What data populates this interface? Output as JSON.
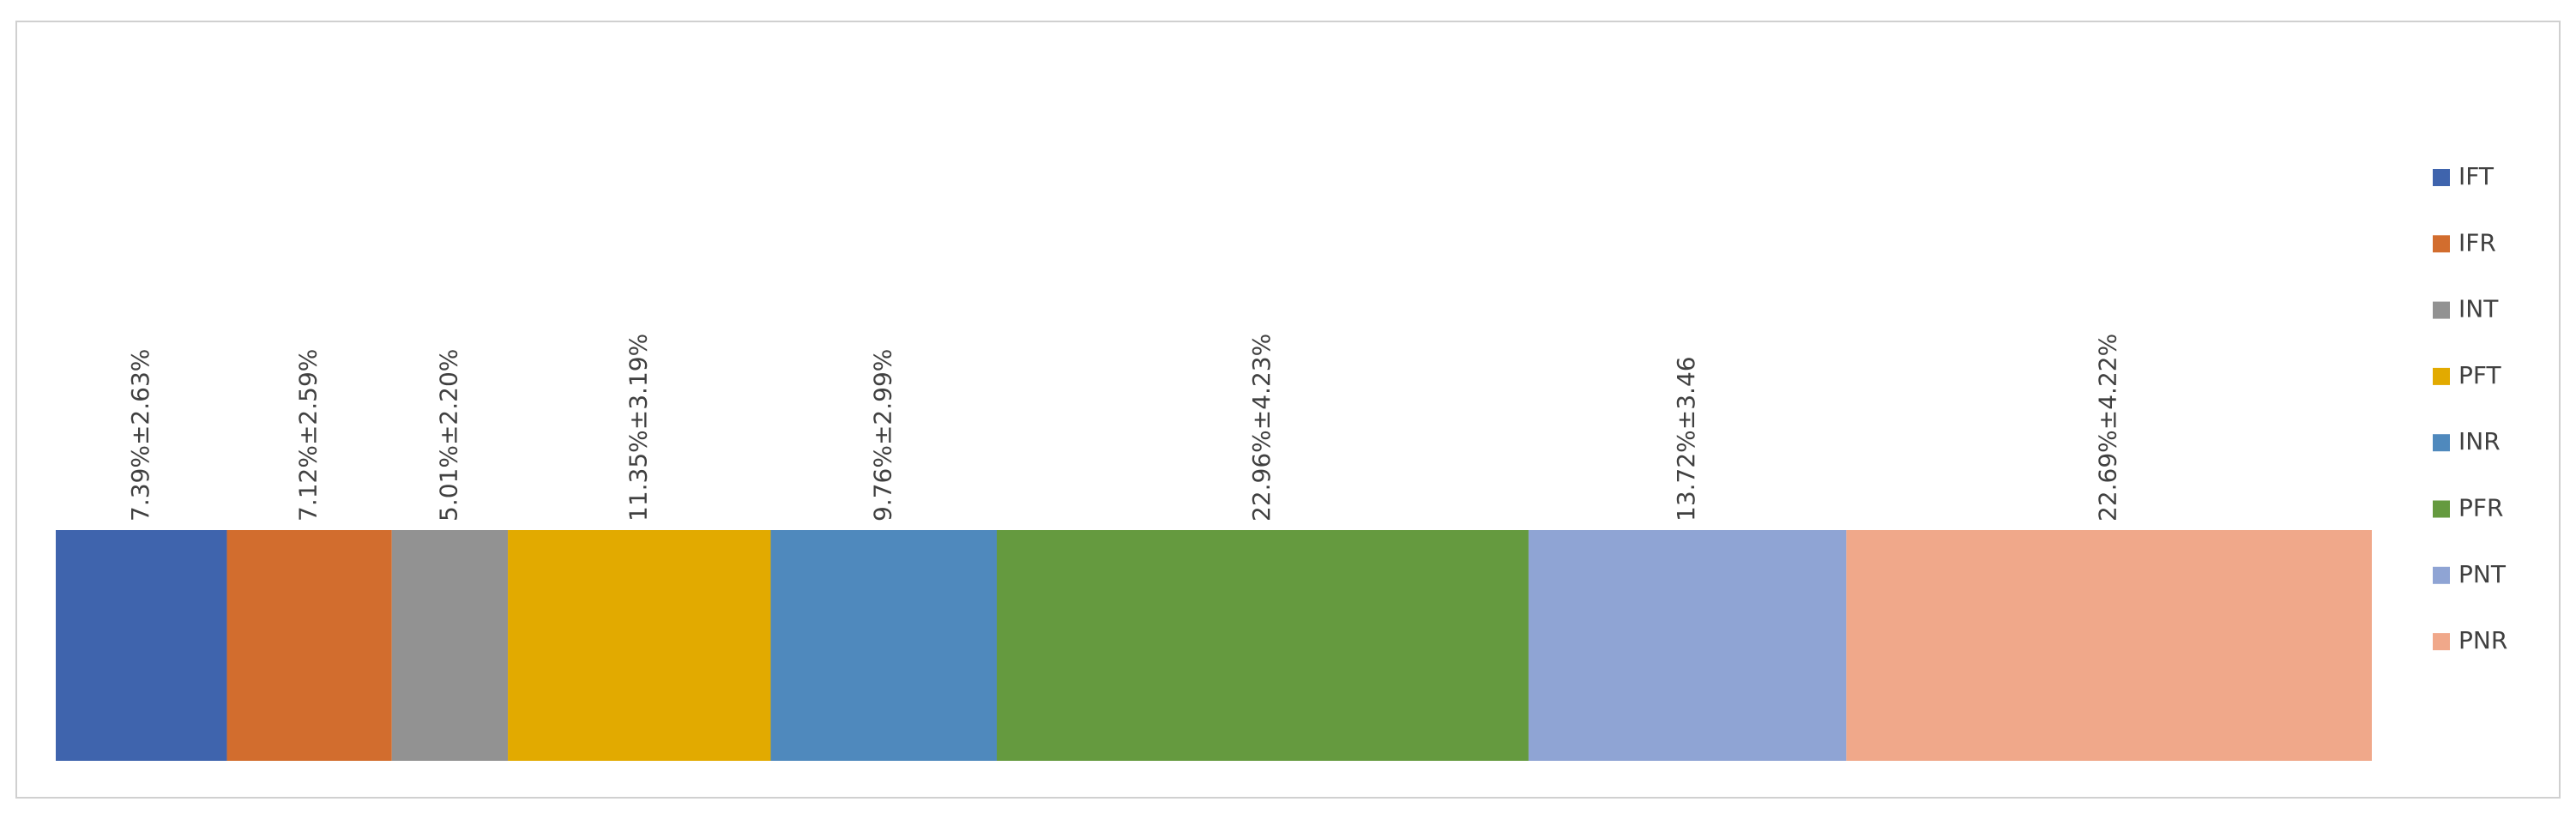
{
  "chart_data": {
    "type": "bar",
    "orientation": "horizontal",
    "stacked": true,
    "xlim": [
      0,
      100
    ],
    "series": [
      {
        "name": "IFT",
        "color": "#3f64ad",
        "values": [
          7.39
        ],
        "value_labels": [
          "7.39%±2.63%"
        ]
      },
      {
        "name": "IFR",
        "color": "#d26d2e",
        "values": [
          7.12
        ],
        "value_labels": [
          "7.12%±2.59%"
        ]
      },
      {
        "name": "INT",
        "color": "#929292",
        "values": [
          5.01
        ],
        "value_labels": [
          "5.01%±2.20%"
        ]
      },
      {
        "name": "PFT",
        "color": "#e2aa00",
        "values": [
          11.35
        ],
        "value_labels": [
          "11.35%±3.19%"
        ]
      },
      {
        "name": "INR",
        "color": "#4f89bd",
        "values": [
          9.76
        ],
        "value_labels": [
          "9.76%±2.99%"
        ]
      },
      {
        "name": "PFR",
        "color": "#659a3f",
        "values": [
          22.96
        ],
        "value_labels": [
          "22.96%±4.23%"
        ]
      },
      {
        "name": "PNT",
        "color": "#8fa4d4",
        "values": [
          13.72
        ],
        "value_labels": [
          "13.72%±3.46"
        ]
      },
      {
        "name": "PNR",
        "color": "#f0a88a",
        "values": [
          22.69
        ],
        "value_labels": [
          "22.69%±4.22%"
        ]
      }
    ],
    "legend": "right"
  }
}
